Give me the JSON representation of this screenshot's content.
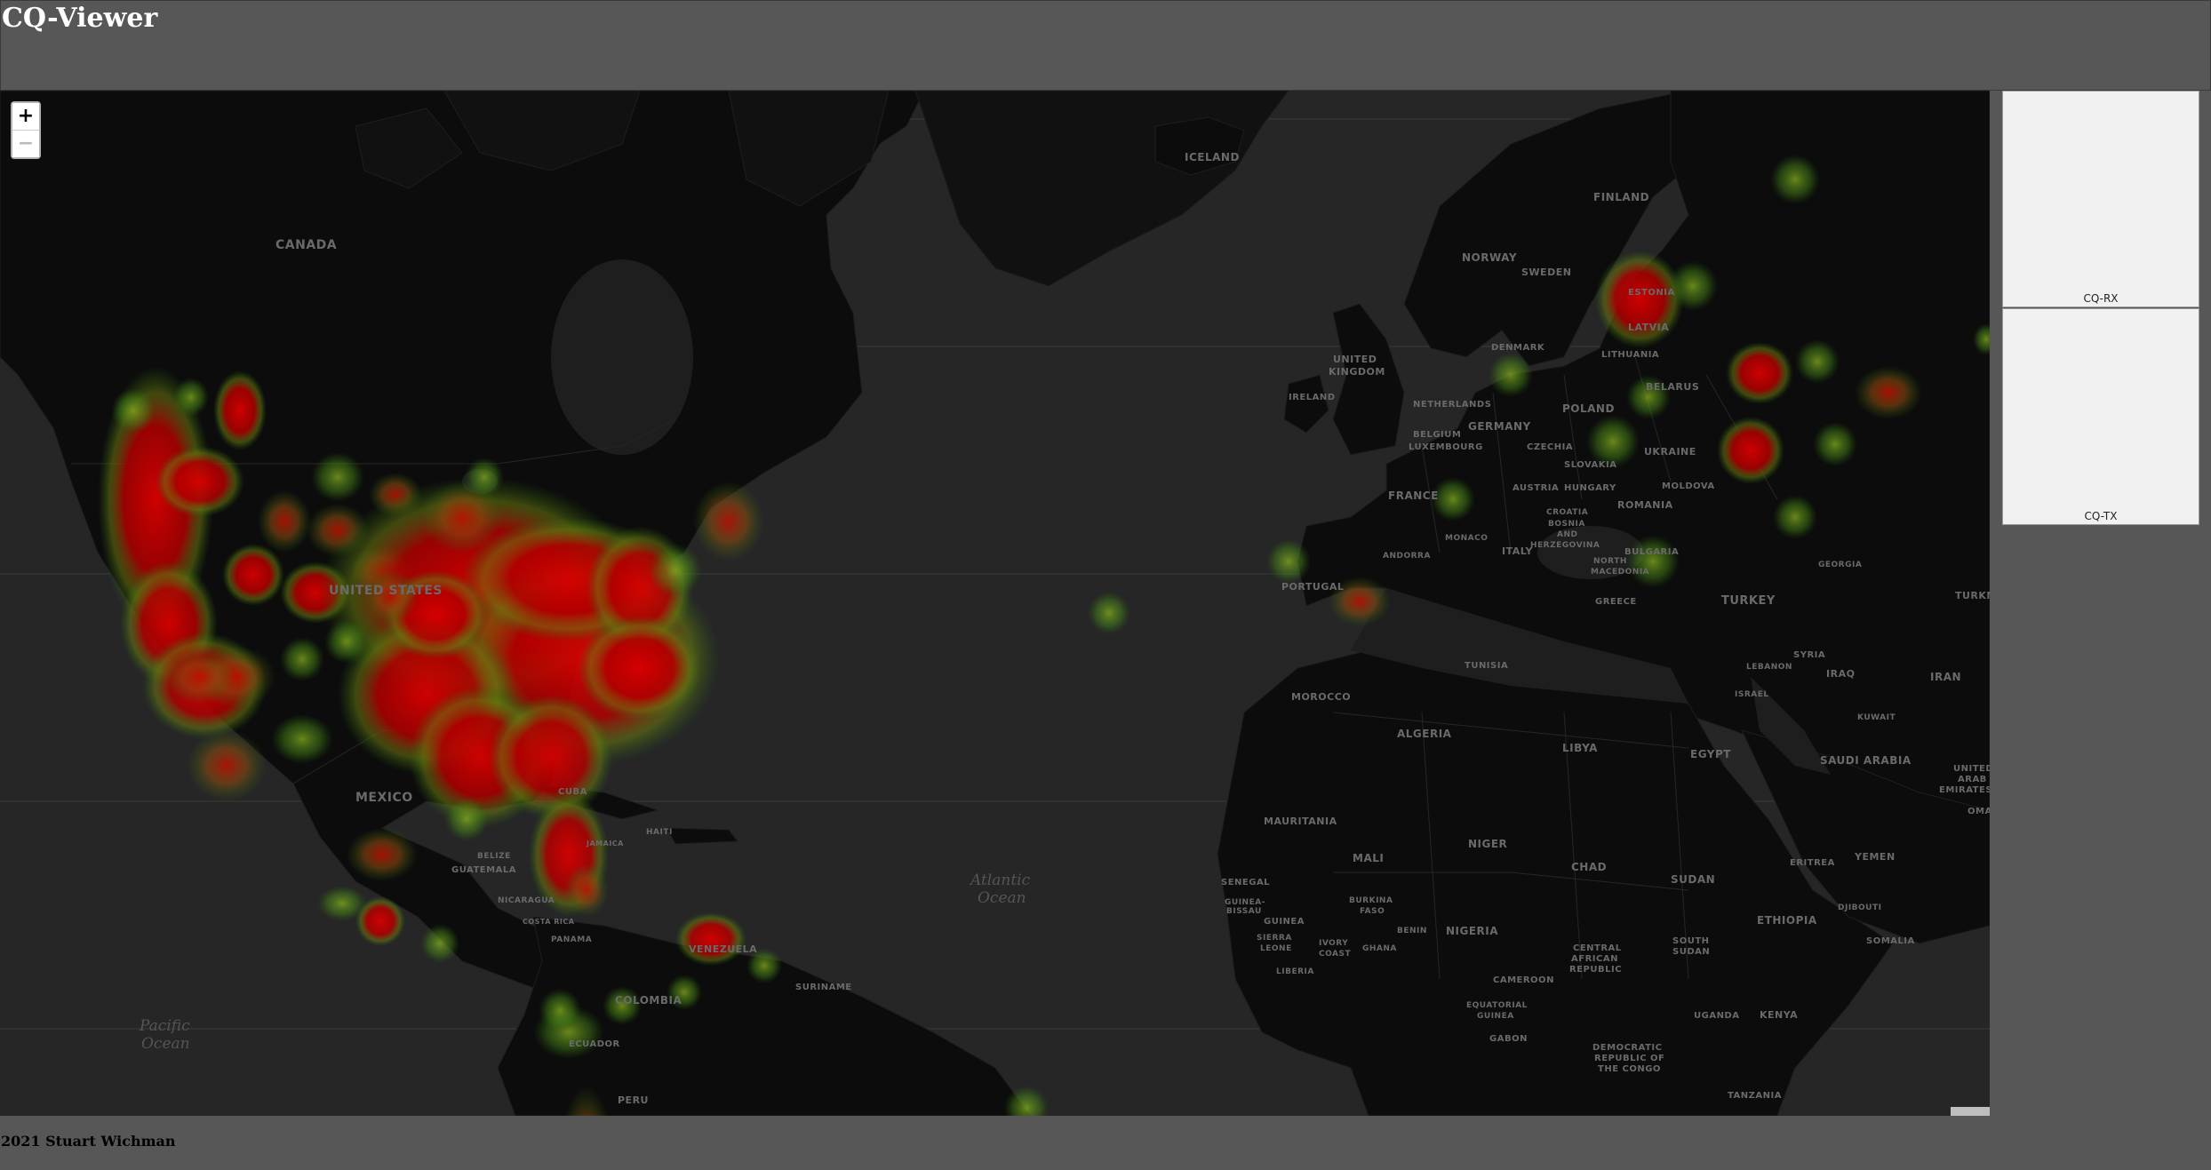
{
  "app": {
    "title": "CQ-Viewer"
  },
  "map": {
    "zoom_in_label": "+",
    "zoom_out_label": "−",
    "labels": {
      "canada": "CANADA",
      "united_states": "UNITED STATES",
      "mexico": "MEXICO",
      "iceland": "ICELAND",
      "norway": "NORWAY",
      "sweden": "SWEDEN",
      "finland": "FINLAND",
      "estonia": "ESTONIA",
      "latvia": "LATVIA",
      "lithuania": "LITHUANIA",
      "denmark": "DENMARK",
      "united_kingdom_1": "UNITED",
      "united_kingdom_2": "KINGDOM",
      "ireland": "IRELAND",
      "netherlands": "NETHERLANDS",
      "belgium": "BELGIUM",
      "luxembourg": "LUXEMBOURG",
      "germany": "GERMANY",
      "poland": "POLAND",
      "belarus": "BELARUS",
      "czechia": "CZECHIA",
      "slovakia": "SLOVAKIA",
      "austria": "AUSTRIA",
      "hungary": "HUNGARY",
      "moldova": "MOLDOVA",
      "ukraine": "UKRAINE",
      "france": "FRANCE",
      "romania": "ROMANIA",
      "croatia": "CROATIA",
      "bosnia_1": "BOSNIA",
      "bosnia_2": "AND",
      "bosnia_3": "HERZEGOVINA",
      "andorra": "ANDORRA",
      "monaco": "MONACO",
      "italy": "ITALY",
      "bulgaria": "BULGARIA",
      "north_macedonia_1": "NORTH",
      "north_macedonia_2": "MACEDONIA",
      "portugal": "PORTUGAL",
      "greece": "GREECE",
      "turkey": "TURKEY",
      "georgia": "GEORGIA",
      "turkmenistan": "TURKM",
      "tunisia": "TUNISIA",
      "morocco": "MOROCCO",
      "algeria": "ALGERIA",
      "libya": "LIBYA",
      "egypt": "EGYPT",
      "syria": "SYRIA",
      "lebanon": "LEBANON",
      "israel": "ISRAEL",
      "iraq": "IRAQ",
      "iran": "IRAN",
      "kuwait": "KUWAIT",
      "saudi_arabia": "SAUDI ARABIA",
      "uae_1": "UNITED",
      "uae_2": "ARAB",
      "uae_3": "EMIRATES",
      "oman": "OMAN",
      "yemen": "YEMEN",
      "eritrea": "ERITREA",
      "djibouti": "DJIBOUTI",
      "somalia": "SOMALIA",
      "ethiopia": "ETHIOPIA",
      "sudan": "SUDAN",
      "south_sudan_1": "SOUTH",
      "south_sudan_2": "SUDAN",
      "chad": "CHAD",
      "niger": "NIGER",
      "mali": "MALI",
      "mauritania": "MAURITANIA",
      "senegal": "SENEGAL",
      "guinea_bissau_1": "GUINEA-",
      "guinea_bissau_2": "BISSAU",
      "guinea": "GUINEA",
      "sierra_leone_1": "SIERRA",
      "sierra_leone_2": "LEONE",
      "liberia": "LIBERIA",
      "ivory_coast_1": "IVORY",
      "ivory_coast_2": "COAST",
      "burkina_faso_1": "BURKINA",
      "burkina_faso_2": "FASO",
      "ghana": "GHANA",
      "benin": "BENIN",
      "nigeria": "NIGERIA",
      "cameroon": "CAMEROON",
      "car_1": "CENTRAL",
      "car_2": "AFRICAN",
      "car_3": "REPUBLIC",
      "eq_guinea_1": "EQUATORIAL",
      "eq_guinea_2": "GUINEA",
      "gabon": "GABON",
      "drc_1": "DEMOCRATIC",
      "drc_2": "REPUBLIC OF",
      "drc_3": "THE CONGO",
      "uganda": "UGANDA",
      "kenya": "KENYA",
      "tanzania": "TANZANIA",
      "cuba": "CUBA",
      "jamaica": "JAMAICA",
      "haiti": "HAITI",
      "belize": "BELIZE",
      "guatemala": "GUATEMALA",
      "nicaragua": "NICARAGUA",
      "costa_rica": "COSTA RICA",
      "panama": "PANAMA",
      "venezuela": "VENEZUELA",
      "suriname": "SURINAME",
      "colombia": "COLOMBIA",
      "ecuador": "ECUADOR",
      "peru": "PERU",
      "atlantic_1": "Atlantic",
      "atlantic_2": "Ocean",
      "pacific_1": "Pacific",
      "pacific_2": "Ocean"
    }
  },
  "panels": {
    "rx_label": "CQ-RX",
    "tx_label": "CQ-TX"
  },
  "footer": {
    "copyright": "2021 Stuart Wichman"
  }
}
